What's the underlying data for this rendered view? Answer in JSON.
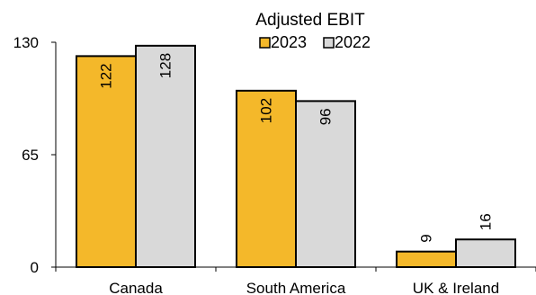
{
  "chart_data": {
    "type": "bar",
    "title": "Adjusted EBIT",
    "categories": [
      "Canada",
      "South America",
      "UK & Ireland"
    ],
    "series": [
      {
        "name": "2023",
        "values": [
          122,
          102,
          9
        ],
        "color": "#F4B82A"
      },
      {
        "name": "2022",
        "values": [
          128,
          96,
          16
        ],
        "color": "#D9D9D9"
      }
    ],
    "ylim": [
      0,
      130
    ],
    "yticks": [
      0,
      65,
      130
    ],
    "xlabel": "",
    "ylabel": "",
    "grid": false,
    "legend": "top-center",
    "data_labels": "rotated"
  }
}
